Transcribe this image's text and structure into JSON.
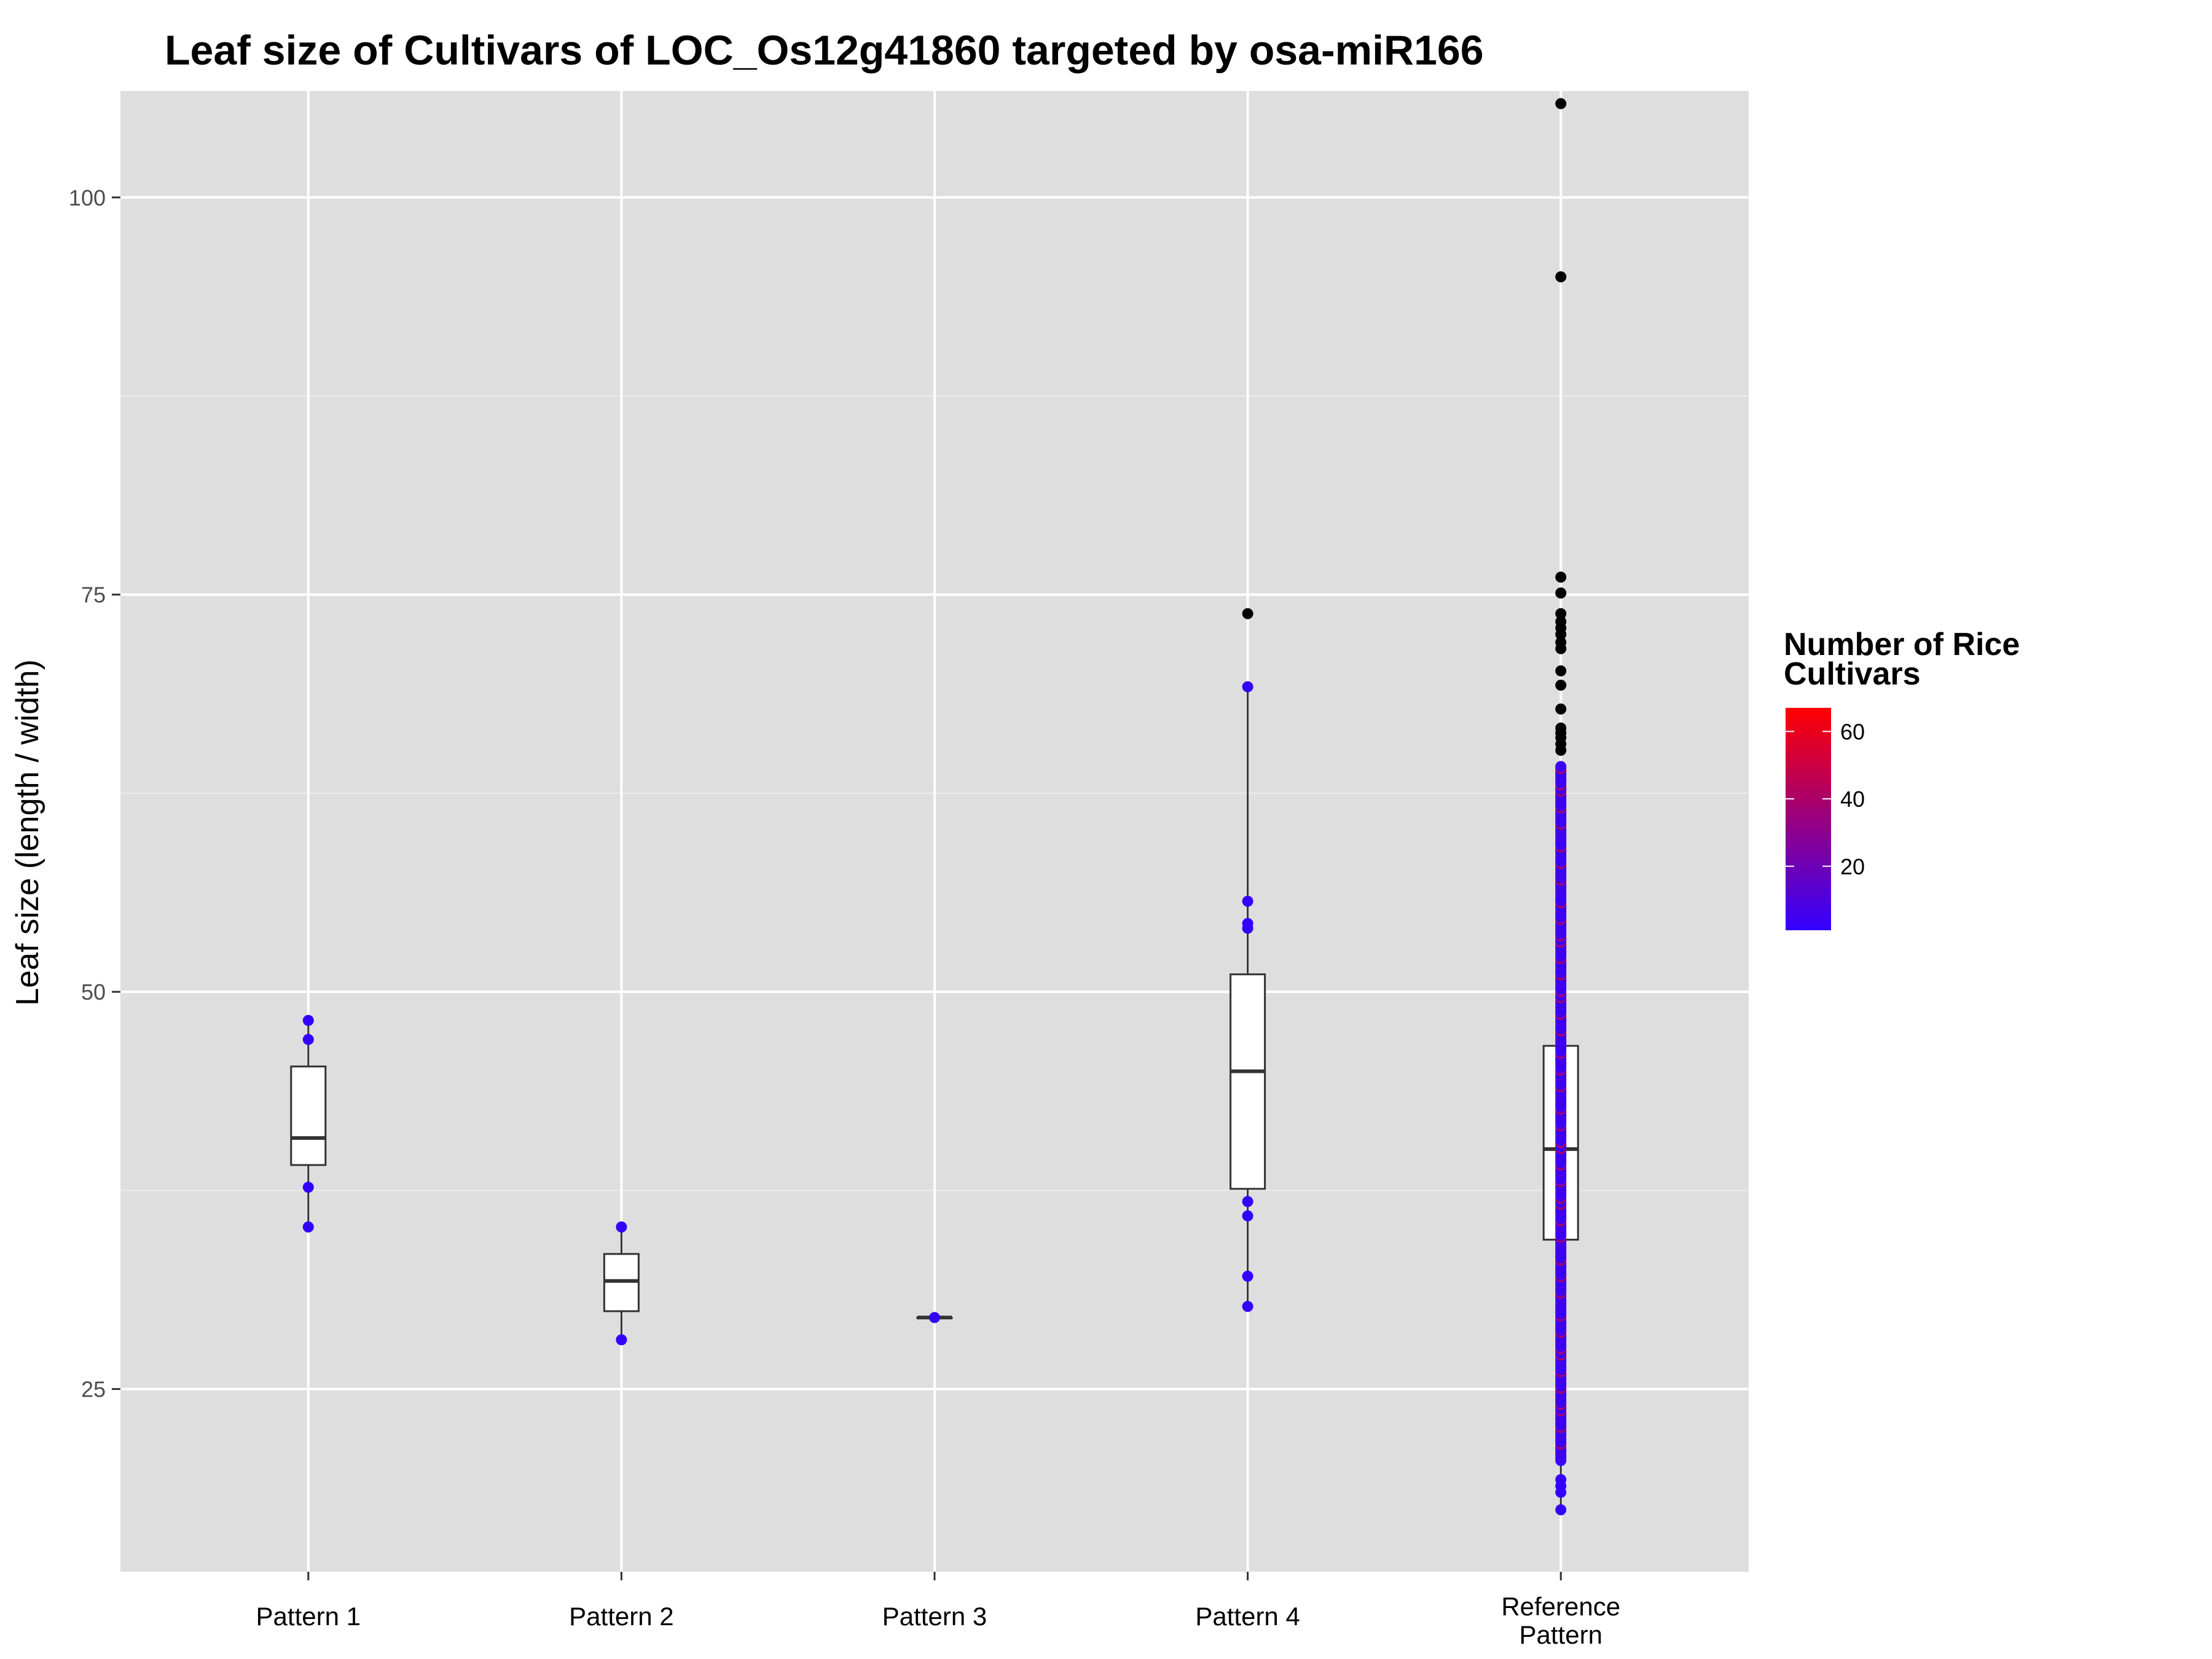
{
  "chart_data": {
    "type": "boxplot",
    "title": "Leaf size of Cultivars of LOC_Os12g41860 targeted by osa-miR166",
    "xlabel": "",
    "ylabel": "Leaf size (length / width)",
    "ylim": [
      13.5,
      106.7
    ],
    "yticks": [
      25,
      50,
      75,
      100
    ],
    "categories": [
      "Pattern 1",
      "Pattern 2",
      "Pattern 3",
      "Pattern 4",
      "Reference Pattern"
    ],
    "boxes": [
      {
        "name": "Pattern 1",
        "q1": 39.1,
        "median": 40.8,
        "q3": 45.3,
        "whisker_low": 35.2,
        "whisker_high": 48.2
      },
      {
        "name": "Pattern 2",
        "q1": 29.9,
        "median": 31.8,
        "q3": 33.5,
        "whisker_low": 28.1,
        "whisker_high": 35.2
      },
      {
        "name": "Pattern 3",
        "q1": 29.5,
        "median": 29.5,
        "q3": 29.5,
        "whisker_low": 29.5,
        "whisker_high": 29.5
      },
      {
        "name": "Pattern 4",
        "q1": 37.6,
        "median": 45.0,
        "q3": 51.1,
        "whisker_low": 30.2,
        "whisker_high": 69.2
      },
      {
        "name": "Reference Pattern",
        "q1": 34.4,
        "median": 40.1,
        "q3": 46.6,
        "whisker_low": 17.4,
        "whisker_high": 64.2
      }
    ],
    "outliers": [
      {
        "category": "Pattern 4",
        "y": [
          73.8
        ]
      },
      {
        "category": "Reference Pattern",
        "y": [
          105.9,
          95.0,
          76.1,
          75.1,
          73.8,
          73.3,
          72.9,
          72.5,
          72.0,
          71.6,
          70.2,
          69.3,
          67.8,
          66.6,
          66.3,
          66.0,
          65.6,
          65.2
        ]
      }
    ],
    "points": [
      {
        "category": "Pattern 1",
        "y": [
          48.2,
          47.0,
          37.7,
          35.2
        ],
        "n": [
          1,
          1,
          1,
          1
        ]
      },
      {
        "category": "Pattern 2",
        "y": [
          35.2,
          28.1
        ],
        "n": [
          1,
          1
        ]
      },
      {
        "category": "Pattern 3",
        "y": [
          29.5
        ],
        "n": [
          1
        ]
      },
      {
        "category": "Pattern 4",
        "y": [
          69.2,
          55.7,
          54.3,
          54.0,
          36.8,
          35.9,
          32.1,
          30.2
        ],
        "n": [
          1,
          1,
          1,
          1,
          1,
          1,
          1,
          1
        ]
      },
      {
        "category": "Reference Pattern",
        "y_range": [
          20.5,
          64.2
        ],
        "extra_y": [
          19.3,
          18.9,
          18.5,
          17.4
        ],
        "n": "1-10"
      }
    ],
    "legend": {
      "title": "Number of Rice Cultivars",
      "type": "colorbar",
      "ticks": [
        20,
        40,
        60
      ],
      "range": [
        1,
        67
      ],
      "low_color": "#3300ff",
      "high_color": "#ff0000",
      "position": "right"
    },
    "outlier_color": "#000000",
    "panel_background": "#dedede",
    "grid": true
  }
}
